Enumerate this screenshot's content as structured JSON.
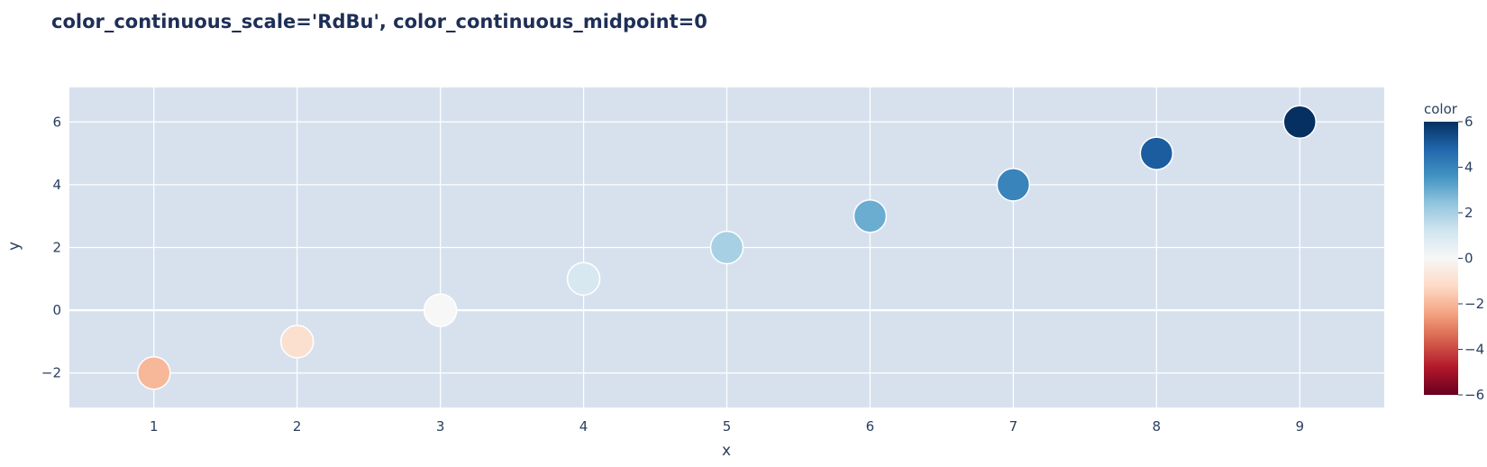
{
  "chart_data": {
    "type": "scatter",
    "title": "color_continuous_scale='RdBu', color_continuous_midpoint=0",
    "xlabel": "x",
    "ylabel": "y",
    "x": [
      1,
      2,
      3,
      4,
      5,
      6,
      7,
      8,
      9
    ],
    "y": [
      -2,
      -1,
      0,
      1,
      2,
      3,
      4,
      5,
      6
    ],
    "color_values": [
      -2,
      -1,
      0,
      1,
      2,
      3,
      4,
      5,
      6
    ],
    "xlim": [
      0.41,
      9.59
    ],
    "ylim": [
      -3.1,
      7.1
    ],
    "xticks": [
      "1",
      "2",
      "3",
      "4",
      "5",
      "6",
      "7",
      "8",
      "9"
    ],
    "yticks": [
      "−2",
      "0",
      "2",
      "4",
      "6"
    ],
    "ytick_values": [
      -2,
      0,
      2,
      4,
      6
    ],
    "grid": true,
    "colorbar": {
      "title": "color",
      "range": [
        -6,
        6
      ],
      "ticks": [
        "6",
        "4",
        "2",
        "0",
        "−2",
        "−4",
        "−6"
      ],
      "tick_values": [
        6,
        4,
        2,
        0,
        -2,
        -4,
        -6
      ],
      "colorscale": [
        "#053061",
        "#2166ac",
        "#4393c3",
        "#92c5de",
        "#d1e5f0",
        "#f7f7f7",
        "#fddbc7",
        "#f4a582",
        "#d6604d",
        "#b2182b",
        "#67001f"
      ]
    },
    "colors": {
      "plot_bg": "#d7e1ee",
      "text": "#2a3f5f",
      "title": "#1e2f57"
    }
  }
}
